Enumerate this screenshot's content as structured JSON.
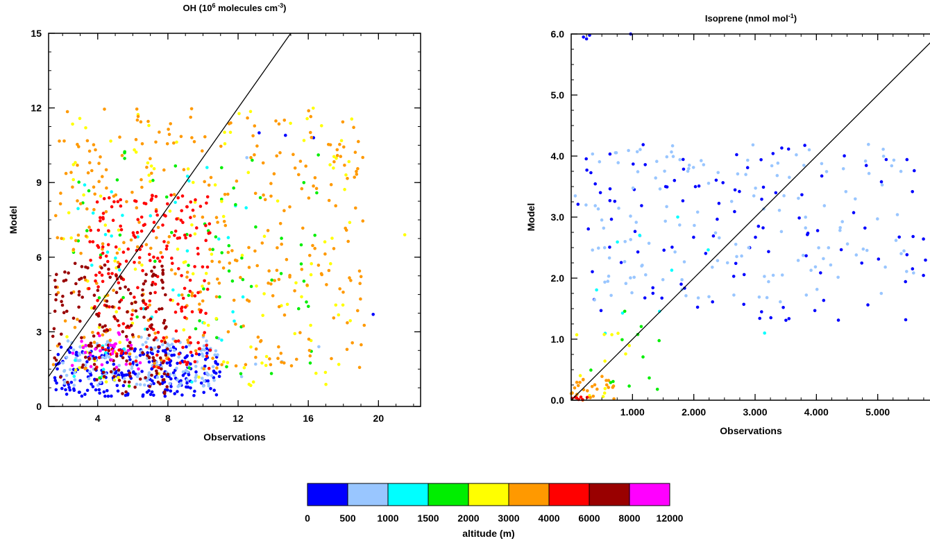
{
  "colors": {
    "0-500": "#0000ff",
    "500-1000": "#99c6ff",
    "1000-1500": "#00ffff",
    "1500-2000": "#00ee00",
    "2000-3000": "#ffff00",
    "3000-4000": "#ff9900",
    "4000-6000": "#ff0000",
    "6000-8000": "#990000",
    "8000-12000": "#ff00ff"
  },
  "chart_data": [
    {
      "type": "scatter",
      "title": "OH (10",
      "title_sup": "6",
      "title_mid": " molecules cm",
      "title_sup2": "-3",
      "title_end": ")",
      "xlabel": "Observations",
      "ylabel": "Model",
      "xlim": [
        1.2,
        22.4
      ],
      "ylim": [
        0,
        15
      ],
      "xticks": [
        4,
        8,
        12,
        16,
        20
      ],
      "xticklabels": [
        "4",
        "8",
        "12",
        "16",
        "20"
      ],
      "yticks": [
        0,
        3,
        6,
        9,
        12,
        15
      ],
      "yticklabels": [
        "0",
        "3",
        "6",
        "9",
        "12",
        "15"
      ],
      "reference_line": "1:1",
      "clusters": [
        {
          "bin": "0-500",
          "n": 260,
          "x": [
            1.5,
            11
          ],
          "y": [
            0.4,
            2.4
          ],
          "extra": [
            [
              16.3,
              10.8
            ],
            [
              19.7,
              3.7
            ],
            [
              14.7,
              10.9
            ],
            [
              13.2,
              11
            ]
          ]
        },
        {
          "bin": "500-1000",
          "n": 150,
          "x": [
            2,
            11
          ],
          "y": [
            0.8,
            2.8
          ],
          "extra": [
            [
              12.2,
              1.2
            ],
            [
              13,
              1.7
            ],
            [
              14.5,
              1.8
            ],
            [
              16.6,
              2.4
            ],
            [
              12.5,
              10
            ]
          ]
        },
        {
          "bin": "1000-1500",
          "n": 40,
          "x": [
            2.5,
            12.5
          ],
          "y": [
            0.8,
            10
          ],
          "extra": []
        },
        {
          "bin": "1500-2000",
          "n": 70,
          "x": [
            2.5,
            17
          ],
          "y": [
            0.8,
            10.5
          ],
          "extra": []
        },
        {
          "bin": "2000-3000",
          "n": 130,
          "x": [
            2,
            19
          ],
          "y": [
            0.8,
            12.2
          ],
          "extra": [
            [
              21.5,
              6.9
            ],
            [
              3.2,
              8.5
            ]
          ]
        },
        {
          "bin": "3000-4000",
          "n": 330,
          "x": [
            1.4,
            19.2
          ],
          "y": [
            1.5,
            12
          ],
          "extra": []
        },
        {
          "bin": "4000-6000",
          "n": 230,
          "x": [
            3.5,
            10.5
          ],
          "y": [
            1.5,
            8.5
          ],
          "extra": []
        },
        {
          "bin": "6000-8000",
          "n": 180,
          "x": [
            1.4,
            8
          ],
          "y": [
            0.5,
            5.8
          ],
          "extra": []
        },
        {
          "bin": "8000-12000",
          "n": 30,
          "x": [
            2.5,
            6.5
          ],
          "y": [
            1.5,
            3
          ],
          "extra": []
        }
      ]
    },
    {
      "type": "scatter",
      "title": "Isoprene (nmol mol",
      "title_sup": "-1",
      "title_end": ")",
      "xlabel": "Observations",
      "ylabel": "Model",
      "xlim": [
        0,
        6
      ],
      "ylim": [
        0,
        6
      ],
      "xticks": [
        1,
        2,
        3,
        4,
        5
      ],
      "xticklabels": [
        "1.000",
        "2.000",
        "3.000",
        "4.000",
        "5.000"
      ],
      "yticks": [
        0,
        1,
        2,
        3,
        4,
        5,
        6
      ],
      "yticklabels": [
        "0.0",
        "1.0",
        "2.0",
        "3.0",
        "4.0",
        "5.0",
        "6.0"
      ],
      "reference_line": "1:1",
      "clusters": [
        {
          "bin": "0-500",
          "n": 110,
          "x": [
            0.1,
            5.9
          ],
          "y": [
            1.3,
            4.2
          ],
          "extra": [
            [
              0.2,
              5.95
            ],
            [
              0.25,
              5.92
            ],
            [
              0.3,
              5.98
            ],
            [
              0.97,
              6.0
            ],
            [
              5.95,
              4.1
            ]
          ]
        },
        {
          "bin": "500-1000",
          "n": 150,
          "x": [
            0.05,
            5.6
          ],
          "y": [
            1.6,
            4.2
          ],
          "extra": []
        },
        {
          "bin": "1000-1500",
          "n": 10,
          "x": [
            0.1,
            3.5
          ],
          "y": [
            0.8,
            3.1
          ],
          "extra": []
        },
        {
          "bin": "1500-2000",
          "n": 12,
          "x": [
            0.05,
            1.5
          ],
          "y": [
            0,
            1.5
          ],
          "extra": []
        },
        {
          "bin": "2000-3000",
          "n": 12,
          "x": [
            0,
            0.95
          ],
          "y": [
            0,
            1.1
          ],
          "extra": []
        },
        {
          "bin": "3000-4000",
          "n": 25,
          "x": [
            0,
            0.7
          ],
          "y": [
            0,
            0.4
          ],
          "extra": []
        },
        {
          "bin": "4000-6000",
          "n": 8,
          "x": [
            0,
            0.3
          ],
          "y": [
            0,
            0.05
          ],
          "extra": []
        }
      ]
    }
  ],
  "colorbar": {
    "label": "altitude (m)",
    "boundaries": [
      "0",
      "500",
      "1000",
      "1500",
      "2000",
      "3000",
      "4000",
      "6000",
      "8000",
      "12000"
    ],
    "bins": [
      "0-500",
      "500-1000",
      "1000-1500",
      "1500-2000",
      "2000-3000",
      "3000-4000",
      "4000-6000",
      "6000-8000",
      "8000-12000"
    ]
  }
}
